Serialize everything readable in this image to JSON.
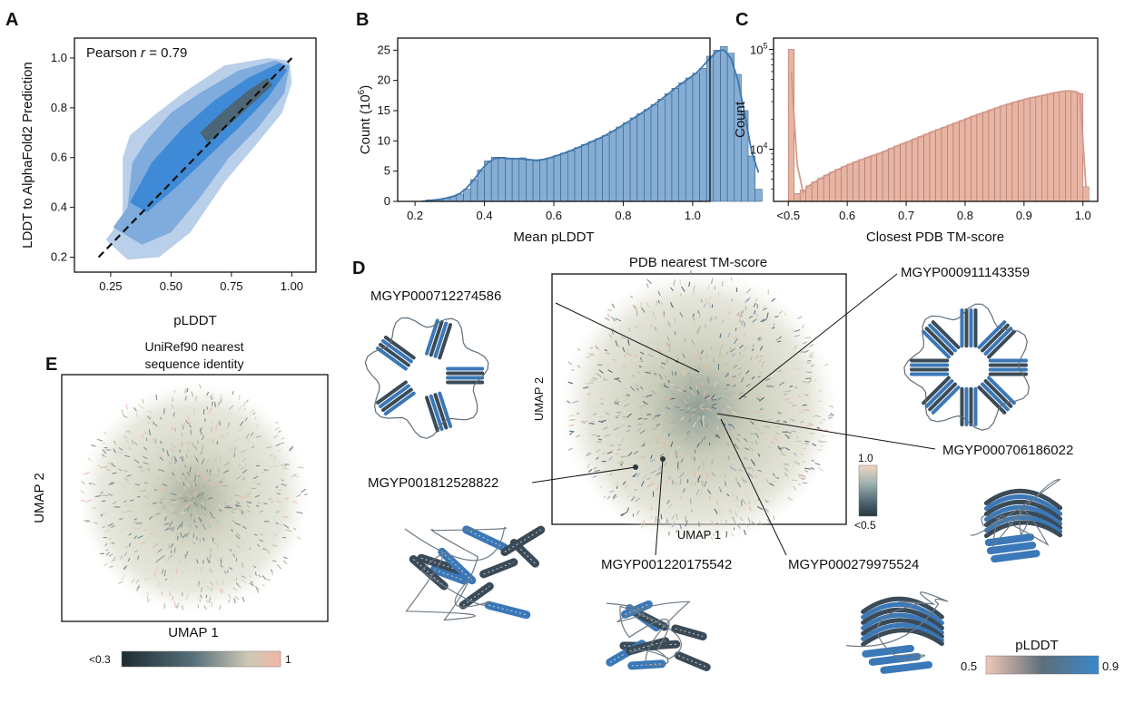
{
  "colors": {
    "blue_light": "#a9c4e4",
    "blue_mid": "#3d86d3",
    "blue_dark": "#244b7a",
    "hist_blue": "#86add3",
    "hist_blue_line": "#3f77ad",
    "salmon": "#e8b5a4",
    "salmon_line": "#c9877a",
    "umap_pale": "#cfd2c0",
    "helix_blue": "#3a78b8",
    "protein_dark": "#3b4a57",
    "cmap_dark": "#2a3a43",
    "cmap_mid": "#6f8790",
    "cmap_pale": "#e8dcc8",
    "cmap_pink": "#f1b5a5"
  },
  "panelA": {
    "letter": "A",
    "annotation_prefix": "Pearson",
    "annotation_italic": "r",
    "annotation_suffix": " = 0.79",
    "xlabel": "pLDDT",
    "ylabel": "LDDT to AlphaFold2 Prediction"
  },
  "panelB": {
    "letter": "B",
    "xlabel": "Mean pLDDT",
    "ylabel_base": "Count (10",
    "ylabel_exp": "6",
    "ylabel_close": ")"
  },
  "panelC": {
    "letter": "C",
    "xlabel": "Closest PDB TM-score",
    "ylabel": "Count"
  },
  "panelD": {
    "letter": "D",
    "title": "PDB nearest TM-score",
    "xlabel": "UMAP 1",
    "ylabel": "UMAP 2",
    "colorbar_top": "1.0",
    "colorbar_bottom": "<0.5",
    "plddt_label": "pLDDT",
    "plddt_low": "0.5",
    "plddt_high": "0.9",
    "proteins": [
      {
        "id": "MGYP000712274586",
        "shape": "beta-propeller"
      },
      {
        "id": "MGYP000911143359",
        "shape": "beta-propeller-ring"
      },
      {
        "id": "MGYP000706186022",
        "shape": "alpha-beta"
      },
      {
        "id": "MGYP001812528822",
        "shape": "all-alpha"
      },
      {
        "id": "MGYP001220175542",
        "shape": "all-alpha"
      },
      {
        "id": "MGYP000279975524",
        "shape": "beta-barrel"
      }
    ]
  },
  "panelE": {
    "letter": "E",
    "title_line1": "UniRef90 nearest",
    "title_line2": "sequence identity",
    "xlabel": "UMAP 1",
    "ylabel": "UMAP 2",
    "colorbar_low": "<0.3",
    "colorbar_high": "1"
  },
  "chart_data": [
    {
      "type": "scatter",
      "panel": "A",
      "subtype": "density-contour",
      "xlabel": "pLDDT",
      "ylabel": "LDDT to AlphaFold2 Prediction",
      "xticks": [
        0.25,
        0.5,
        0.75,
        1.0
      ],
      "xtick_labels": [
        "0.25",
        "0.50",
        "0.75",
        "1.00"
      ],
      "yticks": [
        0.2,
        0.4,
        0.6,
        0.8,
        1.0
      ],
      "ytick_labels": [
        "0.2",
        "0.4",
        "0.6",
        "0.8",
        "1.0"
      ],
      "xlim": [
        0.1,
        1.1
      ],
      "ylim": [
        0.14,
        1.08
      ],
      "pearson_r": 0.79,
      "identity_line": [
        [
          0.2,
          0.2
        ],
        [
          1.0,
          1.0
        ]
      ],
      "density_levels": [
        {
          "level": "outer",
          "polygon": [
            [
              0.23,
              0.27
            ],
            [
              0.3,
              0.36
            ],
            [
              0.3,
              0.6
            ],
            [
              0.33,
              0.69
            ],
            [
              0.43,
              0.77
            ],
            [
              0.55,
              0.86
            ],
            [
              0.72,
              0.97
            ],
            [
              0.9,
              1.0
            ],
            [
              0.99,
              0.99
            ],
            [
              1.0,
              0.9
            ],
            [
              0.96,
              0.78
            ],
            [
              0.85,
              0.65
            ],
            [
              0.72,
              0.5
            ],
            [
              0.58,
              0.3
            ],
            [
              0.45,
              0.2
            ],
            [
              0.32,
              0.19
            ]
          ]
        },
        {
          "level": "middle",
          "polygon": [
            [
              0.26,
              0.32
            ],
            [
              0.32,
              0.4
            ],
            [
              0.34,
              0.58
            ],
            [
              0.4,
              0.67
            ],
            [
              0.5,
              0.78
            ],
            [
              0.62,
              0.86
            ],
            [
              0.78,
              0.95
            ],
            [
              0.93,
              0.99
            ],
            [
              0.99,
              0.97
            ],
            [
              0.97,
              0.86
            ],
            [
              0.86,
              0.72
            ],
            [
              0.74,
              0.6
            ],
            [
              0.62,
              0.44
            ],
            [
              0.5,
              0.3
            ],
            [
              0.38,
              0.25
            ]
          ]
        },
        {
          "level": "inner",
          "polygon": [
            [
              0.33,
              0.42
            ],
            [
              0.42,
              0.58
            ],
            [
              0.55,
              0.72
            ],
            [
              0.68,
              0.83
            ],
            [
              0.82,
              0.92
            ],
            [
              0.95,
              0.98
            ],
            [
              0.98,
              0.95
            ],
            [
              0.9,
              0.84
            ],
            [
              0.78,
              0.72
            ],
            [
              0.65,
              0.6
            ],
            [
              0.52,
              0.48
            ],
            [
              0.4,
              0.38
            ]
          ]
        },
        {
          "level": "core",
          "polygon": [
            [
              0.62,
              0.7
            ],
            [
              0.72,
              0.79
            ],
            [
              0.82,
              0.87
            ],
            [
              0.9,
              0.92
            ],
            [
              0.92,
              0.89
            ],
            [
              0.84,
              0.82
            ],
            [
              0.74,
              0.73
            ],
            [
              0.65,
              0.66
            ]
          ]
        }
      ]
    },
    {
      "type": "bar",
      "panel": "B",
      "subtype": "histogram-with-kde",
      "xlabel": "Mean pLDDT",
      "ylabel": "Count (10^6)",
      "xlim": [
        0.15,
        1.05
      ],
      "ylim": [
        0,
        27
      ],
      "xticks": [
        0.2,
        0.4,
        0.6,
        0.8,
        1.0
      ],
      "xtick_labels": [
        "0.2",
        "0.4",
        "0.6",
        "0.8",
        "1.0"
      ],
      "yticks": [
        0,
        5,
        10,
        15,
        20,
        25
      ],
      "ytick_labels": [
        "0",
        "5",
        "10",
        "15",
        "20",
        "25"
      ],
      "bin_start": 0.22,
      "bin_width": 0.02,
      "values": [
        0.1,
        0.2,
        0.3,
        0.5,
        0.8,
        1.2,
        2.0,
        3.6,
        5.2,
        6.7,
        7.3,
        7.3,
        7.0,
        7.0,
        7.2,
        6.8,
        6.7,
        6.9,
        7.2,
        7.6,
        8.0,
        8.4,
        8.9,
        9.4,
        9.9,
        10.4,
        10.9,
        11.6,
        12.3,
        13.0,
        13.8,
        14.5,
        15.2,
        16.0,
        16.9,
        17.8,
        18.7,
        19.6,
        20.4,
        21.2,
        22.0,
        24.0,
        25.0,
        25.6,
        24.5,
        21.0,
        15.0,
        7.5,
        2.0
      ]
    },
    {
      "type": "bar",
      "panel": "C",
      "subtype": "histogram-log-y",
      "xlabel": "Closest PDB TM-score",
      "ylabel": "Count",
      "log_scale": true,
      "xlim": [
        0.475,
        1.025
      ],
      "ylim": [
        3000,
        130000
      ],
      "xticks": [
        0.5,
        0.6,
        0.7,
        0.8,
        0.9,
        1.0
      ],
      "xtick_labels": [
        "<0.5",
        "0.6",
        "0.7",
        "0.8",
        "0.9",
        "1.0"
      ],
      "yticks": [
        10000,
        100000
      ],
      "ytick_labels": [
        "10^4",
        "10^5"
      ],
      "bin_start": 0.5,
      "bin_width": 0.01,
      "values": [
        100000,
        3600,
        3900,
        4300,
        4700,
        5100,
        5500,
        5900,
        6300,
        6700,
        7100,
        7500,
        7900,
        8300,
        8700,
        9100,
        9600,
        10200,
        10800,
        11400,
        12000,
        12700,
        13400,
        14200,
        15000,
        15800,
        16600,
        17500,
        18400,
        19400,
        20400,
        21500,
        22600,
        23700,
        24900,
        26100,
        27300,
        28500,
        29700,
        30900,
        32000,
        33000,
        34000,
        35000,
        36000,
        37000,
        38000,
        38500,
        38000,
        36000,
        4200
      ]
    },
    {
      "type": "scatter",
      "panel": "D",
      "subtype": "umap-embedding",
      "title": "PDB nearest TM-score",
      "xlabel": "UMAP 1",
      "ylabel": "UMAP 2",
      "color_range": [
        "<0.5",
        "1.0"
      ]
    },
    {
      "type": "scatter",
      "panel": "E",
      "subtype": "umap-embedding",
      "title": "UniRef90 nearest sequence identity",
      "xlabel": "UMAP 1",
      "ylabel": "UMAP 2",
      "color_range": [
        "<0.3",
        "1"
      ]
    }
  ]
}
